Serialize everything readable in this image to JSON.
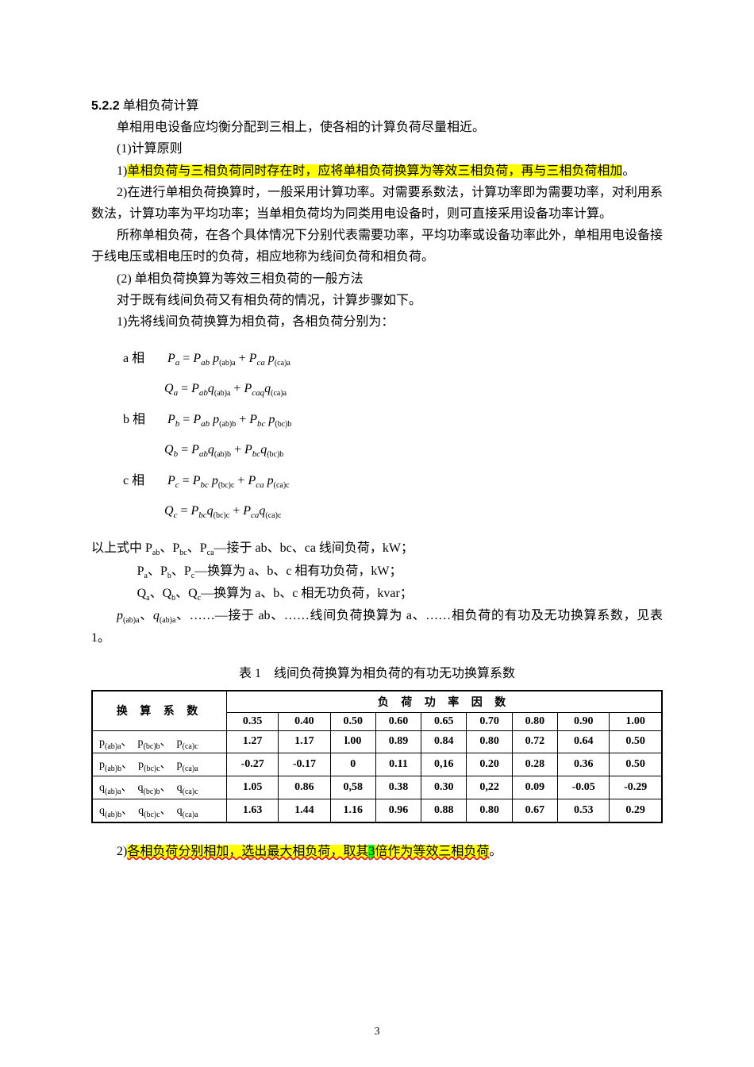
{
  "section": {
    "number": "5.2.2",
    "title": "单相负荷计算",
    "intro": "单相用电设备应均衡分配到三相上，使各相的计算负荷尽量相近。"
  },
  "p1": {
    "head": "(1)计算原则",
    "l1a": "1)",
    "l1b_hl": "单相负荷与三相负荷同时存在时，应将单相负荷换算为等效三相负荷，再与三相负荷相加",
    "l1c": "。",
    "l2": "2)在进行单相负荷换算时，一般采用计算功率。对需要系数法，计算功率即为需要功率，对利用系数法，计算功率为平均功率；当单相负荷均为同类用电设备时，则可直接采用设备功率计算。",
    "l3": "所称单相负荷，在各个具体情况下分别代表需要功率，平均功率或设备功率此外，单相用电设备接于线电压或相电压时的负荷，相应地称为线间负荷和相负荷。"
  },
  "p2": {
    "head": "(2) 单相负荷换算为等效三相负荷的一般方法",
    "l1": "对于既有线间负荷又有相负荷的情况，计算步骤如下。",
    "l2": "1)先将线间负荷换算为相负荷，各相负荷分别为："
  },
  "eq": {
    "a": {
      "lbl": "a 相",
      "Pl": "P",
      "Ps": "a",
      "r": "P",
      "r1s": "ab",
      "p1": "p",
      "p1s": "(ab)a",
      "plus": "+",
      "r2": "P",
      "r2s": "ca",
      "p2": "p",
      "p2s": "(ca)a"
    },
    "aQ": {
      "Q": "Q",
      "Qs": "a",
      "eq": "=",
      "t1": "P",
      "t1s": "ab",
      "q1": "q",
      "q1s": "(ab)a",
      "plus": "+",
      "t2": "P",
      "t2s": "caq",
      "q2": "q",
      "q2s": "(ca)a"
    },
    "b": {
      "lbl": "b 相",
      "Pl": "P",
      "Ps": "b",
      "r": "P",
      "r1s": "ab",
      "p1": "p",
      "p1s": "(ab)b",
      "plus": "+",
      "r2": "P",
      "r2s": "bc",
      "p2": "p",
      "p2s": "(bc)b"
    },
    "bQ": {
      "Q": "Q",
      "Qs": "b",
      "eq": "=",
      "t1": "P",
      "t1s": "ab",
      "q1": "q",
      "q1s": "(ab)b",
      "plus": "+",
      "t2": "P",
      "t2s": "bc",
      "q2": "q",
      "q2s": "(bc)b"
    },
    "c": {
      "lbl": "c 相",
      "Pl": "P",
      "Ps": "c",
      "r": "P",
      "r1s": "bc",
      "p1": "p",
      "p1s": "(bc)c",
      "plus": "+",
      "r2": "P",
      "r2s": "ca",
      "p2": "p",
      "p2s": "(ca)c"
    },
    "cQ": {
      "Q": "Q",
      "Qs": "c",
      "eq": "=",
      "t1": "P",
      "t1s": "bc",
      "q1": "q",
      "q1s": "(bc)c",
      "plus": "+",
      "t2": "P",
      "t2s": "ca",
      "q2": "q",
      "q2s": "(ca)c"
    }
  },
  "varlist": {
    "l1": "以上式中 P",
    "l1s": "ab",
    "l1m": "、P",
    "l1s2": "bc",
    "l1m2": "、P",
    "l1s3": "ca",
    "l1e": "—接于 ab、bc、ca 线间负荷，kW；",
    "l2": "P",
    "l2s": "a",
    "l2m": "、P",
    "l2s2": "b",
    "l2m2": "、P",
    "l2s3": "c",
    "l2e": "—换算为 a、b、c 相有功负荷，kW；",
    "l3": "Q",
    "l3s": "a",
    "l3m": "、Q",
    "l3s2": "b",
    "l3m2": "、Q",
    "l3s3": "c",
    "l3e": "—换算为 a、b、c 相无功负荷，kvar；",
    "l4a": "p",
    "l4as": "(ab)a",
    "l4sep": "、",
    "l4b": "q",
    "l4bs": "(ab)a",
    "l4m": "、……—接于 ab、……线间负荷换算为 a、……相负荷的有功及无功换算系数，见表 1。"
  },
  "table": {
    "title_prefix": "表 1",
    "title": "线间负荷换算为相负荷的有功无功换算系数",
    "corner": "换 算 系 数",
    "header": "负 荷 功 率 因 数",
    "pf": [
      "0.35",
      "0.40",
      "0.50",
      "0.60",
      "0.65",
      "0.70",
      "0.80",
      "0.90",
      "1.00"
    ],
    "rows": [
      {
        "label_parts": [
          "p",
          "(ab)a",
          "、",
          "p",
          "(bc)b",
          "、",
          "p",
          "(ca)c"
        ],
        "vals": [
          "1.27",
          "1.17",
          "l.00",
          "0.89",
          "0.84",
          "0.80",
          "0.72",
          "0.64",
          "0.50"
        ]
      },
      {
        "label_parts": [
          "p",
          "(ab)b",
          "、",
          "p",
          "(bc)c",
          "、",
          "p",
          "(ca)a"
        ],
        "vals": [
          "-0.27",
          "-0.17",
          "0",
          "0.11",
          "0,16",
          "0.20",
          "0.28",
          "0.36",
          "0.50"
        ]
      },
      {
        "label_parts": [
          "q",
          "(ab)a",
          "、",
          "q",
          "(bc)b",
          "、",
          "q",
          "(ca)c"
        ],
        "vals": [
          "1.05",
          "0.86",
          "0,58",
          "0.38",
          "0.30",
          "0,22",
          "0.09",
          "-0.05",
          "-0.29"
        ]
      },
      {
        "label_parts": [
          "q",
          "(ab)b",
          "、",
          "q",
          "(bc)c",
          "、",
          "q",
          "(ca)a"
        ],
        "vals": [
          "1.63",
          "1.44",
          "1.16",
          "0.96",
          "0.88",
          "0.80",
          "0.67",
          "0.53",
          "0.29"
        ]
      }
    ]
  },
  "footer": {
    "lead": "2)",
    "hl1": "各相负荷分别相加，选出最大相负荷，取其",
    "three": "3",
    "hl2": "倍作为等效三相负荷",
    "tail": "。"
  },
  "page_num": "3"
}
